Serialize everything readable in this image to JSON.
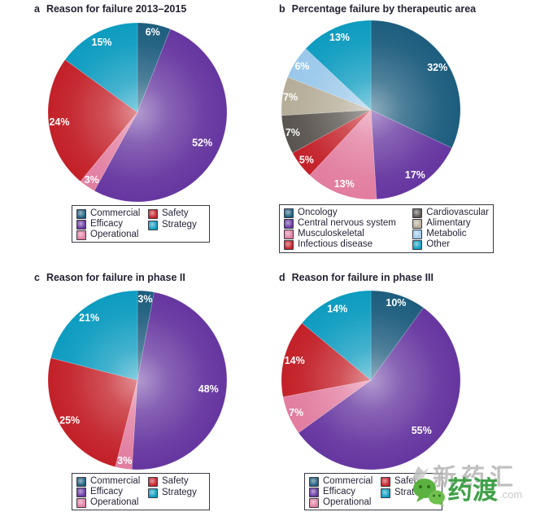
{
  "watermark": {
    "line1": "新药汇",
    "line2": "药渡",
    "suffix": ".com"
  },
  "chart_data": [
    {
      "panel_letter": "a",
      "title": "Reason for failure 2013–2015",
      "type": "pie",
      "value_suffix": "%",
      "legend_position": "below",
      "slices": [
        {
          "label": "Commercial",
          "value": 6,
          "color": "#1d5d7e"
        },
        {
          "label": "Efficacy",
          "value": 52,
          "color": "#6636a0"
        },
        {
          "label": "Operational",
          "value": 3,
          "color": "#e27da0"
        },
        {
          "label": "Safety",
          "value": 24,
          "color": "#c32028"
        },
        {
          "label": "Strategy",
          "value": 15,
          "color": "#0d9cc0"
        }
      ],
      "legend_columns": [
        [
          "Commercial",
          "Efficacy",
          "Operational"
        ],
        [
          "Safety",
          "Strategy"
        ]
      ]
    },
    {
      "panel_letter": "b",
      "title": "Percentage failure by therapeutic area",
      "type": "pie",
      "value_suffix": "%",
      "legend_position": "below",
      "slices": [
        {
          "label": "Oncology",
          "value": 32,
          "color": "#1d5d7e"
        },
        {
          "label": "Central nervous system",
          "value": 17,
          "color": "#6636a0"
        },
        {
          "label": "Musculoskeletal",
          "value": 13,
          "color": "#e27da0"
        },
        {
          "label": "Infectious disease",
          "value": 5,
          "color": "#c32028"
        },
        {
          "label": "Cardiovascular",
          "value": 7,
          "color": "#59544f"
        },
        {
          "label": "Alimentary",
          "value": 7,
          "color": "#b5ad98"
        },
        {
          "label": "Metabolic",
          "value": 6,
          "color": "#9ac8ea"
        },
        {
          "label": "Other",
          "value": 13,
          "color": "#0d9cc0"
        }
      ],
      "legend_columns": [
        [
          "Oncology",
          "Central nervous system",
          "Musculoskeletal",
          "Infectious disease"
        ],
        [
          "Cardiovascular",
          "Alimentary",
          "Metabolic",
          "Other"
        ]
      ]
    },
    {
      "panel_letter": "c",
      "title": "Reason for failure in phase II",
      "type": "pie",
      "value_suffix": "%",
      "legend_position": "below",
      "slices": [
        {
          "label": "Commercial",
          "value": 3,
          "color": "#1d5d7e"
        },
        {
          "label": "Efficacy",
          "value": 48,
          "color": "#6636a0"
        },
        {
          "label": "Operational",
          "value": 3,
          "color": "#e27da0"
        },
        {
          "label": "Safety",
          "value": 25,
          "color": "#c32028"
        },
        {
          "label": "Strategy",
          "value": 21,
          "color": "#0d9cc0"
        }
      ],
      "legend_columns": [
        [
          "Commercial",
          "Efficacy",
          "Operational"
        ],
        [
          "Safety",
          "Strategy"
        ]
      ]
    },
    {
      "panel_letter": "d",
      "title": "Reason for failure in phase III",
      "type": "pie",
      "value_suffix": "%",
      "legend_position": "below",
      "slices": [
        {
          "label": "Commercial",
          "value": 10,
          "color": "#1d5d7e"
        },
        {
          "label": "Efficacy",
          "value": 55,
          "color": "#6636a0"
        },
        {
          "label": "Operational",
          "value": 7,
          "color": "#e27da0"
        },
        {
          "label": "Safety",
          "value": 14,
          "color": "#c32028"
        },
        {
          "label": "Strategy",
          "value": 14,
          "color": "#0d9cc0"
        }
      ],
      "legend_columns": [
        [
          "Commercial",
          "Efficacy",
          "Operational"
        ],
        [
          "Safety",
          "Strategy"
        ]
      ]
    }
  ]
}
